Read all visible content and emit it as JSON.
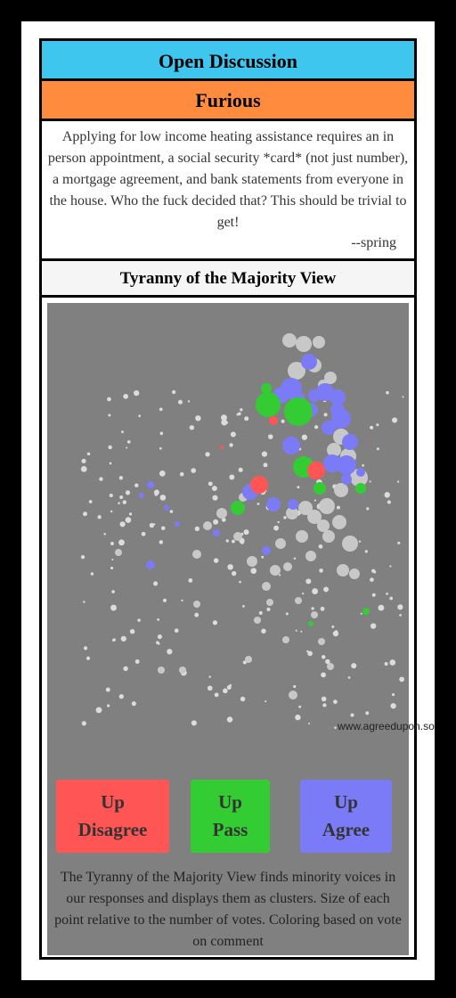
{
  "header": {
    "title": "Open Discussion",
    "mood": "Furious"
  },
  "comment": {
    "text": "Applying for low income heating assistance requires an in person appointment, a social security *card* (not just number), a mortgage agreement, and bank statements from everyone in the house. Who the fuck decided that? This should be trivial to get!",
    "author": "--spring"
  },
  "view": {
    "title": "Tyranny of the Majority View",
    "watermark": "www.agreedupon.so",
    "description": "The Tyranny of the Majority View finds minority voices in our responses and displays them as clusters. Size of each point relative to the number of votes. Coloring based on vote on comment"
  },
  "buttons": {
    "disagree": "Up Disagree",
    "pass": "Up Pass",
    "agree": "Up Agree"
  },
  "colors": {
    "open": "#3ec6ee",
    "mood": "#ff8c3e",
    "panel": "#808080",
    "disagree": "#ff5555",
    "pass": "#33cc33",
    "agree": "#7b7bf7",
    "neutral": "#c8c8c8"
  }
}
